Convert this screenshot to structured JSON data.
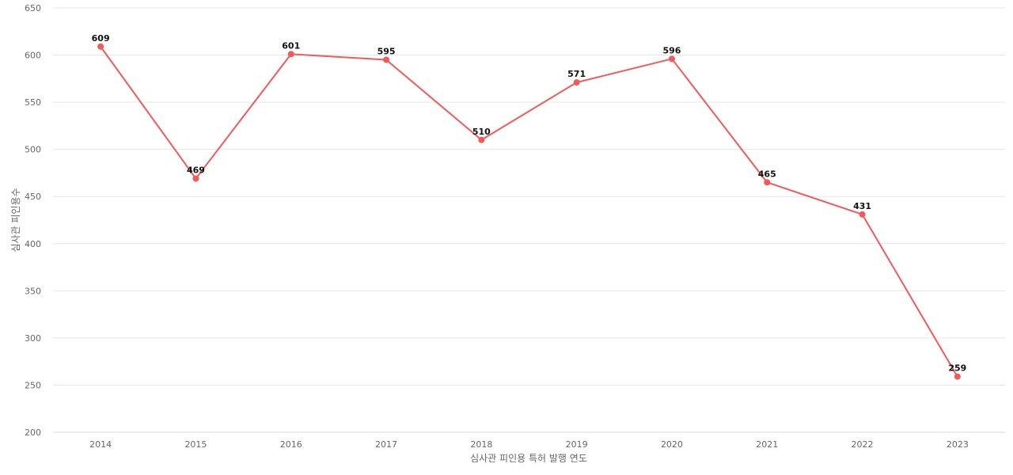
{
  "chart_data": {
    "type": "line",
    "title": "",
    "xlabel": "심사관 피인용 특허 발행 연도",
    "ylabel": "심사관 피인용수",
    "categories": [
      "2014",
      "2015",
      "2016",
      "2017",
      "2018",
      "2019",
      "2020",
      "2021",
      "2022",
      "2023"
    ],
    "series": [
      {
        "values": [
          609,
          469,
          601,
          595,
          510,
          571,
          596,
          465,
          431,
          259
        ],
        "color": "#f05a5a"
      }
    ],
    "ylim": [
      200,
      650
    ],
    "yticks": [
      200,
      250,
      300,
      350,
      400,
      450,
      500,
      550,
      600,
      650
    ],
    "grid": true,
    "data_labels": true
  },
  "colors": {
    "line": "#f05a5a",
    "grid": "#e6e6e6",
    "axis_text": "#666666",
    "data_label": "#111111"
  }
}
